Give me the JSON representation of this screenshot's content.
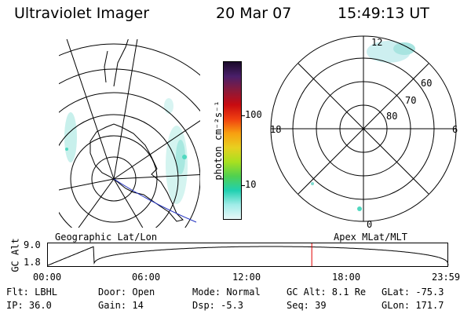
{
  "header": {
    "instrument": "Ultraviolet Imager",
    "date": "20 Mar 07",
    "time": "15:49:13 UT"
  },
  "colorbar": {
    "unit_label": "photon cm⁻²s⁻¹",
    "ticks": [
      "100",
      "10"
    ],
    "colors": [
      "#1a0a2a",
      "#4a1f6a",
      "#8a1a3a",
      "#c80a10",
      "#f04010",
      "#f8a010",
      "#e8d020",
      "#a8e020",
      "#50d050",
      "#20d0b0",
      "#a0ece8",
      "#e8f8f8"
    ]
  },
  "left_map": {
    "label": "Geographic Lat/Lon"
  },
  "right_map": {
    "label": "Apex MLat/MLT",
    "mlt_labels": {
      "top": "12",
      "left": "18",
      "right": "6",
      "bottom": "0"
    },
    "lat_labels": [
      "60",
      "70",
      "80"
    ]
  },
  "altitude_plot": {
    "ylabel": "GC Alt",
    "yticks": [
      "9.0",
      "1.8"
    ],
    "xticks": [
      "00:00",
      "06:00",
      "12:00",
      "18:00",
      "23:59"
    ],
    "marker_hours": 15.82,
    "marker_color": "#e00000"
  },
  "info": {
    "row1": {
      "filter": "Flt: LBHL",
      "door": "Door: Open",
      "mode": "Mode: Normal",
      "gcalt": "GC Alt: 8.1 Re",
      "glat": "GLat: -75.3"
    },
    "row2": {
      "ip": "IP: 36.0",
      "gain": "Gain: 14",
      "dsp": "Dsp:   -5.3",
      "seq": "Seq: 39",
      "glon": "GLon: 171.7"
    }
  }
}
